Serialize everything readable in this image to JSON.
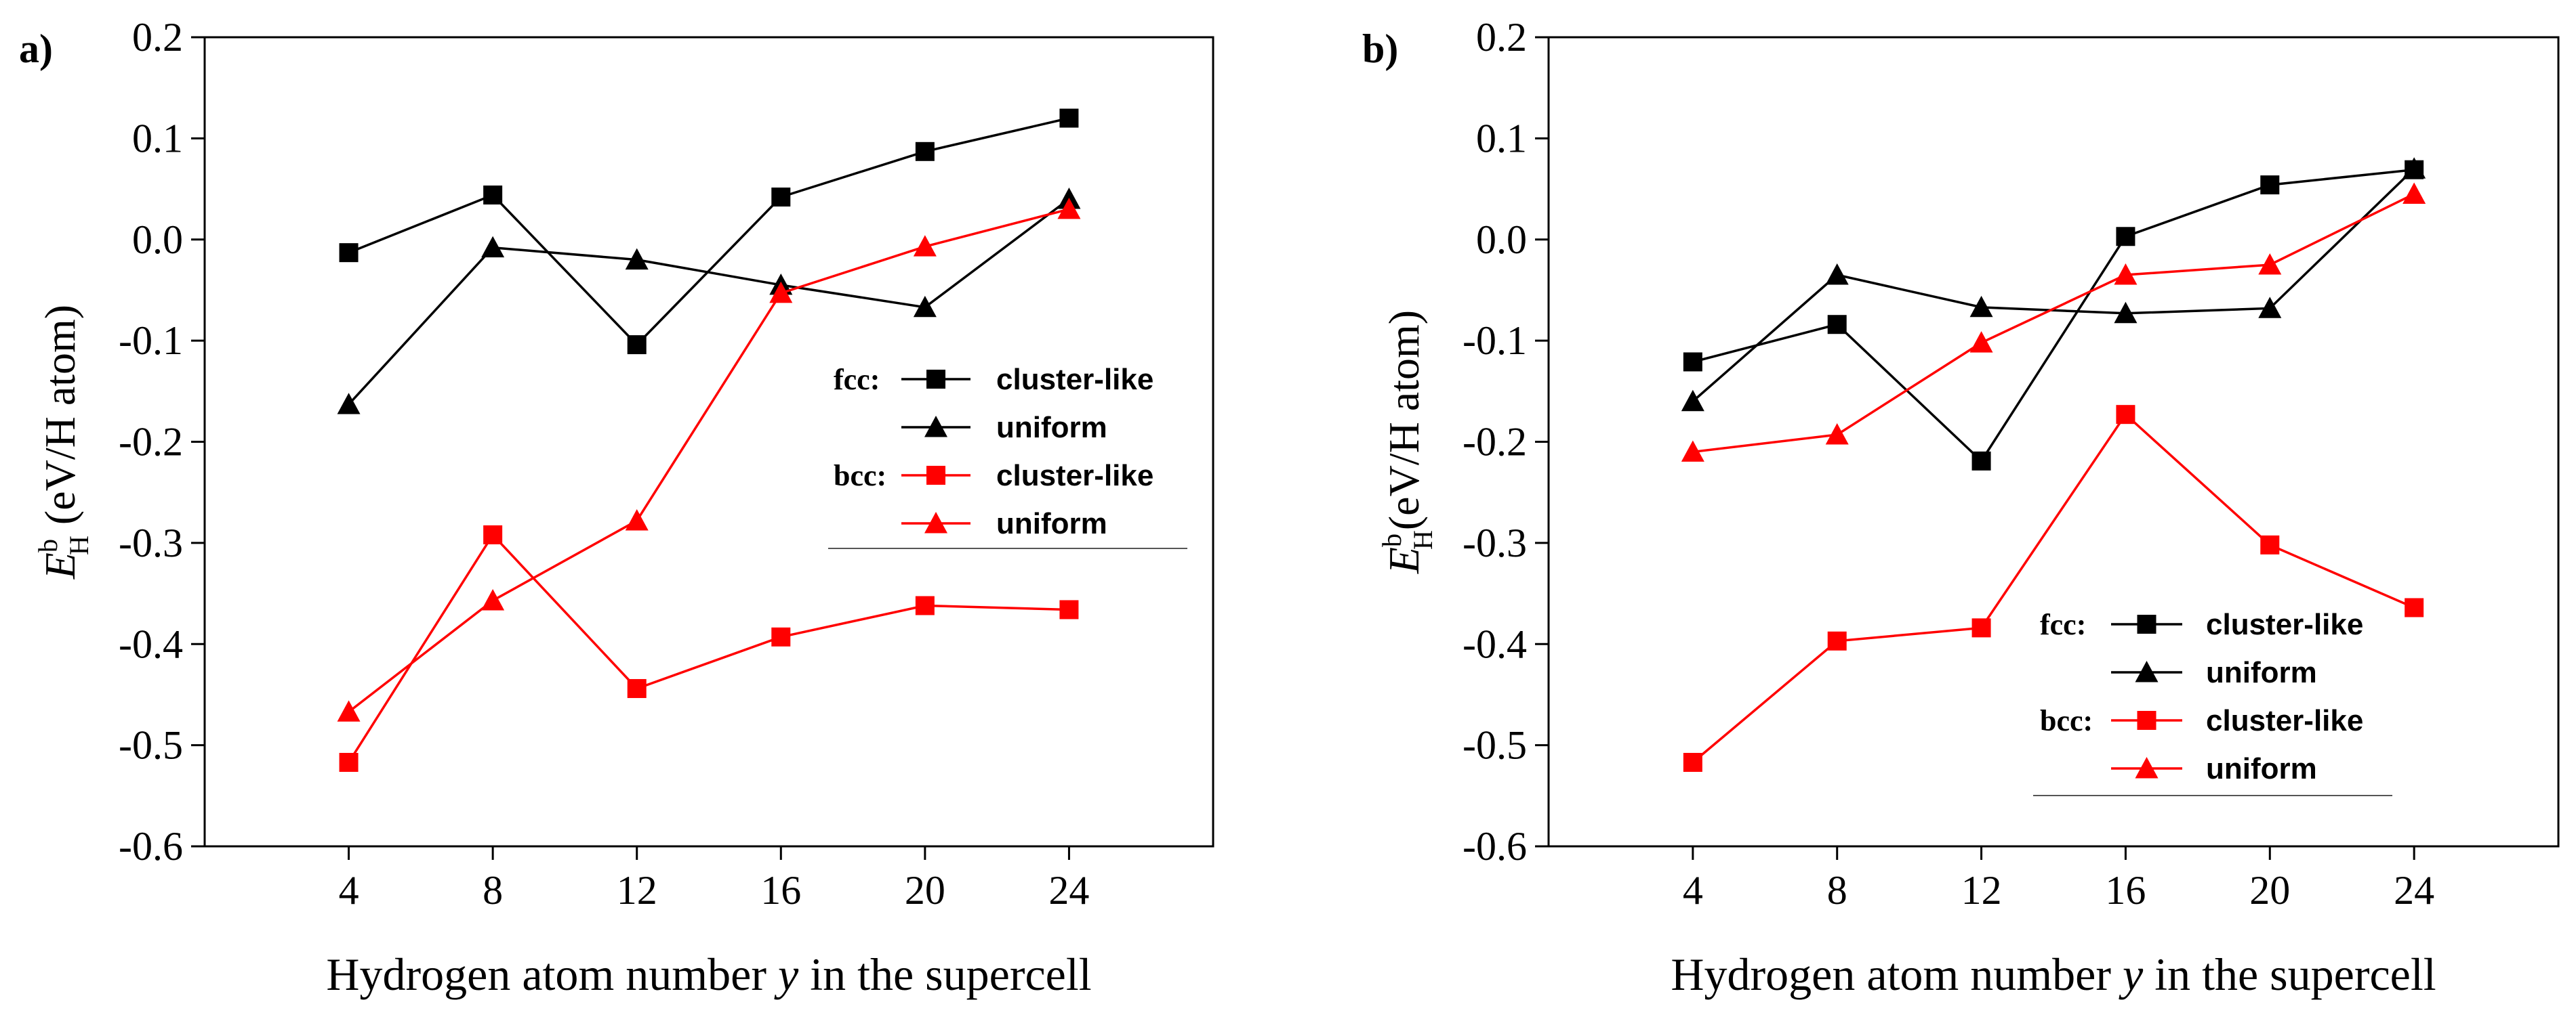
{
  "chart_data": [
    {
      "panel_label": "a)",
      "type": "line",
      "xlabel_parts": {
        "pre": "Hydrogen atom number ",
        "var": "y",
        "post": " in the supercell"
      },
      "ylabel_parts": {
        "sym": "E",
        "sup": "b",
        "sub": "H",
        "unit": " (eV/H atom)"
      },
      "x": [
        4,
        8,
        12,
        16,
        20,
        24
      ],
      "xticks": [
        "4",
        "8",
        "12",
        "16",
        "20",
        "24"
      ],
      "xlim": [
        0,
        28
      ],
      "ylim": [
        -0.6,
        0.2
      ],
      "yticks": [
        "-0.6",
        "-0.5",
        "-0.4",
        "-0.3",
        "-0.2",
        "-0.1",
        "0.0",
        "0.1",
        "0.2"
      ],
      "legend_position": "center-right",
      "legend_groups": {
        "fcc": "fcc:",
        "bcc": "bcc:"
      },
      "series": [
        {
          "name": "cluster-like",
          "group": "fcc",
          "color": "#000000",
          "marker": "square",
          "values": [
            -0.013,
            0.044,
            -0.104,
            0.042,
            0.087,
            0.12
          ]
        },
        {
          "name": "uniform",
          "group": "fcc",
          "color": "#000000",
          "marker": "triangle",
          "values": [
            -0.163,
            -0.008,
            -0.02,
            -0.045,
            -0.067,
            0.04
          ]
        },
        {
          "name": "cluster-like",
          "group": "bcc",
          "color": "#ff0000",
          "marker": "square",
          "values": [
            -0.517,
            -0.292,
            -0.444,
            -0.393,
            -0.362,
            -0.366
          ]
        },
        {
          "name": "uniform",
          "group": "bcc",
          "color": "#ff0000",
          "marker": "triangle",
          "values": [
            -0.467,
            -0.357,
            -0.278,
            -0.053,
            -0.007,
            0.03
          ]
        }
      ]
    },
    {
      "panel_label": "b)",
      "type": "line",
      "xlabel_parts": {
        "pre": "Hydrogen atom number ",
        "var": "y",
        "post": " in the supercell"
      },
      "ylabel_parts": {
        "sym": "E",
        "sup": "b",
        "sub": "H",
        "unit": "(eV/H atom)"
      },
      "x": [
        4,
        8,
        12,
        16,
        20,
        24
      ],
      "xticks": [
        "4",
        "8",
        "12",
        "16",
        "20",
        "24"
      ],
      "xlim": [
        0,
        28
      ],
      "ylim": [
        -0.6,
        0.2
      ],
      "yticks": [
        "-0.6",
        "-0.5",
        "-0.4",
        "-0.3",
        "-0.2",
        "-0.1",
        "0.0",
        "0.1",
        "0.2"
      ],
      "legend_position": "lower-right",
      "legend_groups": {
        "fcc": "fcc:",
        "bcc": "bcc:"
      },
      "series": [
        {
          "name": "cluster-like",
          "group": "fcc",
          "color": "#000000",
          "marker": "square",
          "values": [
            -0.121,
            -0.084,
            -0.219,
            0.003,
            0.054,
            0.069
          ]
        },
        {
          "name": "uniform",
          "group": "fcc",
          "color": "#000000",
          "marker": "triangle",
          "values": [
            -0.16,
            -0.035,
            -0.067,
            -0.073,
            -0.068,
            0.07
          ]
        },
        {
          "name": "cluster-like",
          "group": "bcc",
          "color": "#ff0000",
          "marker": "square",
          "values": [
            -0.517,
            -0.397,
            -0.384,
            -0.173,
            -0.302,
            -0.364
          ]
        },
        {
          "name": "uniform",
          "group": "bcc",
          "color": "#ff0000",
          "marker": "triangle",
          "values": [
            -0.21,
            -0.193,
            -0.102,
            -0.035,
            -0.025,
            0.045
          ]
        }
      ]
    }
  ]
}
